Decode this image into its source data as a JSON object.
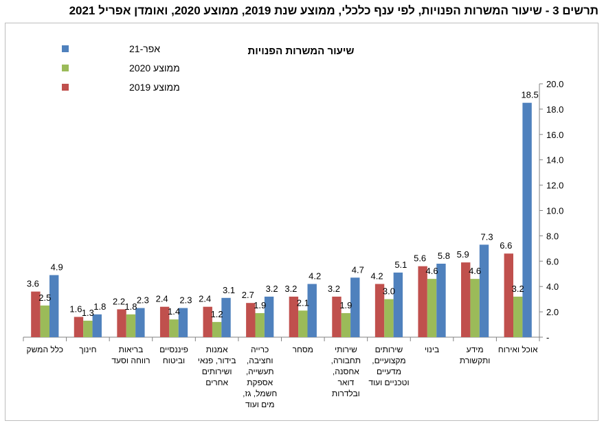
{
  "page": {
    "title": "תרשים 3 - שיעור המשרות הפנויות, לפי ענף כלכלי, ממוצע שנת 2019, ממוצע 2020, ואומדן אפריל 2021"
  },
  "chart_data": {
    "type": "bar",
    "title": "שיעור המשרות הפנויות",
    "categories": [
      [
        "אוכל ואירוח"
      ],
      [
        "מידע",
        "ותקשורת"
      ],
      [
        "בינוי"
      ],
      [
        "שירותים",
        "מקצועיים,",
        "מדעיים",
        "וטכניים ועוד"
      ],
      [
        "שירותי",
        "תחבורה,",
        "אחסנה,",
        "דואר",
        "ובלדרות"
      ],
      [
        "מסחר"
      ],
      [
        "כרייה",
        "וחציבה,",
        "תעשייה,",
        "אספקת",
        "חשמל, גז,",
        "מים ועוד"
      ],
      [
        "אמנות",
        "בידור, פנאי",
        "ושירותים",
        "אחרים"
      ],
      [
        "פיננסיים",
        "וביטוח"
      ],
      [
        "בריאות",
        "רווחה וסעד"
      ],
      [
        "חינוך"
      ],
      [
        "כלל המשק"
      ]
    ],
    "series": [
      {
        "name": "ממוצע 2019",
        "color": "#c0504d",
        "values": [
          6.6,
          5.9,
          5.6,
          4.2,
          3.2,
          3.2,
          2.7,
          2.4,
          2.4,
          2.2,
          1.6,
          3.6
        ]
      },
      {
        "name": "ממוצע 2020",
        "color": "#9bbb59",
        "values": [
          3.2,
          4.6,
          4.6,
          3.0,
          1.9,
          2.1,
          1.9,
          1.2,
          1.4,
          1.8,
          1.3,
          2.5
        ]
      },
      {
        "name": "אפר-21",
        "color": "#4f81bd",
        "values": [
          18.5,
          7.3,
          5.8,
          5.1,
          4.7,
          4.2,
          3.2,
          3.1,
          2.3,
          2.3,
          1.8,
          4.9
        ]
      }
    ],
    "legend_order": [
      "אפר-21",
      "ממוצע 2020",
      "ממוצע 2019"
    ],
    "ylim": [
      0,
      20
    ],
    "yticks": [
      "-",
      "2.0",
      "4.0",
      "6.0",
      "8.0",
      "10.0",
      "12.0",
      "14.0",
      "16.0",
      "18.0",
      "20.0"
    ],
    "y_axis_side": "right",
    "legend_position": "top-left",
    "grid": false
  }
}
